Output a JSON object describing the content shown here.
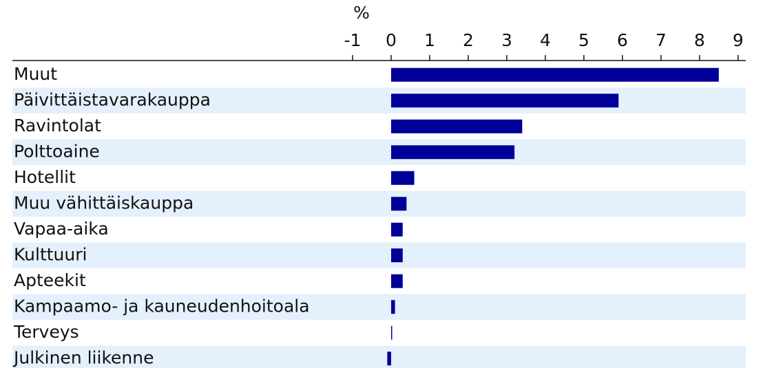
{
  "chart_data": {
    "type": "barh",
    "x_label": "%",
    "categories": [
      "Muut",
      "Päivittäistavarakauppa",
      "Ravintolat",
      "Polttoaine",
      "Hotellit",
      "Muu vähittäiskauppa",
      "Vapaa-aika",
      "Kulttuuri",
      "Apteekit",
      "Kampaamo- ja kauneudenhoitoala",
      "Terveys",
      "Julkinen liikenne"
    ],
    "values": [
      8.5,
      5.9,
      3.4,
      3.2,
      0.6,
      0.4,
      0.3,
      0.3,
      0.3,
      0.1,
      0,
      -0.1
    ],
    "color": "#000099",
    "band_color": "#e4f0fc",
    "xlim": [
      -1,
      9.2
    ],
    "xticks": [
      -1,
      0,
      1,
      2,
      3,
      4,
      5,
      6,
      7,
      8,
      9
    ]
  }
}
